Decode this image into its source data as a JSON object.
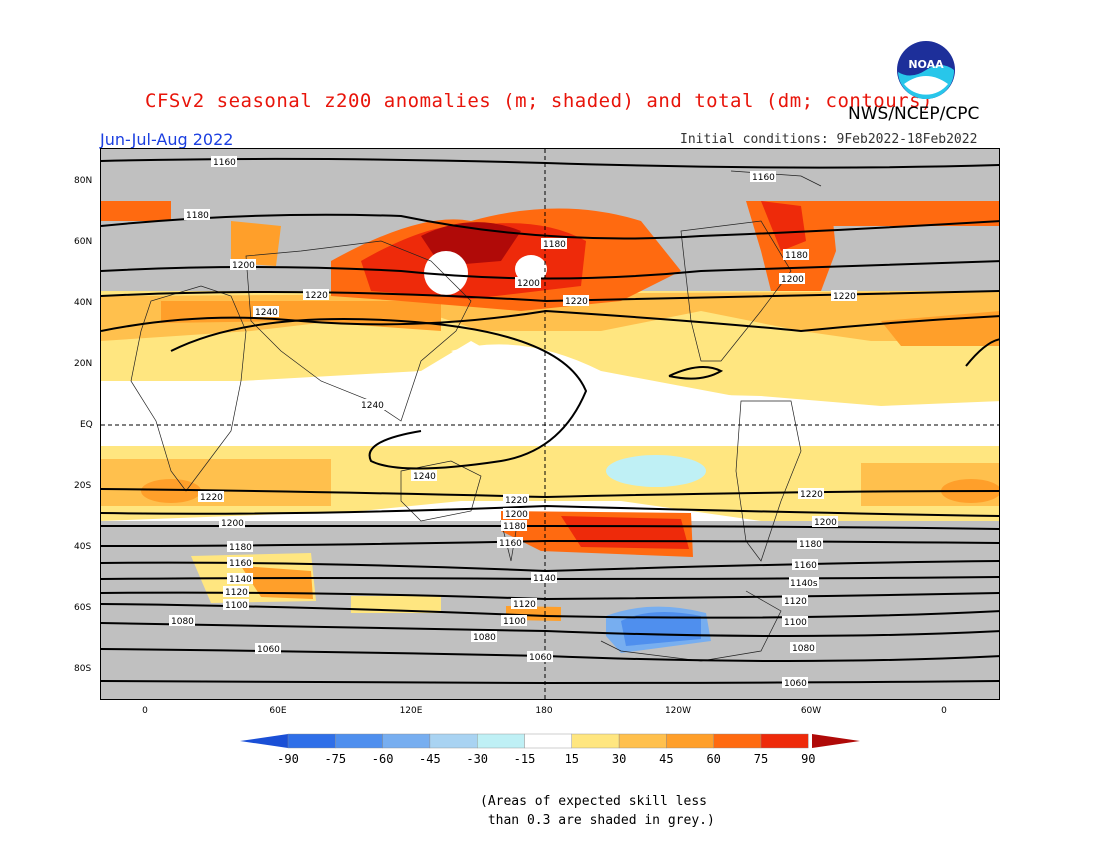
{
  "header": {
    "title": "CFSv2 seasonal z200 anomalies (m; shaded) and total (dm; contours)",
    "agency": "NWS/NCEP/CPC",
    "season": "Jun-Jul-Aug 2022",
    "initial_conditions": "Initial conditions: 9Feb2022-18Feb2022",
    "logo_text": "NOAA"
  },
  "map": {
    "lat_labels": [
      "80N",
      "60N",
      "40N",
      "20N",
      "EQ",
      "20S",
      "40S",
      "60S",
      "80S"
    ],
    "lon_labels": [
      "0",
      "60E",
      "120E",
      "180",
      "120W",
      "60W",
      "0"
    ],
    "contour_labels": {
      "c1240": "1240",
      "c1220": "1220",
      "c1200": "1200",
      "c1180": "1180",
      "c1160": "1160",
      "c1140": "1140",
      "c1120": "1120",
      "c1100": "1100",
      "c1080": "1080",
      "c1060": "1060",
      "c1080b": "1080",
      "c1140s": "1140s"
    }
  },
  "colorbar": {
    "labels": [
      "-90",
      "-75",
      "-60",
      "-45",
      "-30",
      "-15",
      "15",
      "30",
      "45",
      "60",
      "75",
      "90"
    ],
    "colors": [
      "#1a4fd6",
      "#2f6fe8",
      "#4f8fee",
      "#77aef0",
      "#a9d3f2",
      "#bff0f5",
      "#ffffff",
      "#ffe680",
      "#ffc04d",
      "#ff9f2a",
      "#ff6a10",
      "#ee2a0a",
      "#b00a08"
    ]
  },
  "note": "(Areas of expected skill less\n than 0.3 are shaded in grey.)"
}
